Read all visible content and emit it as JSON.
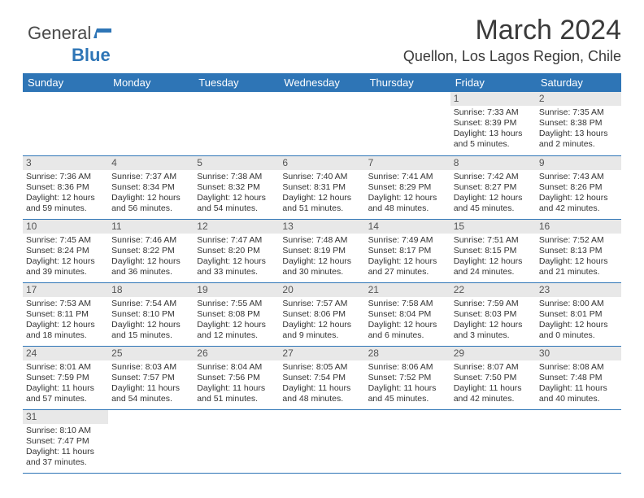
{
  "brand": {
    "part1": "General",
    "part2": "Blue"
  },
  "title": "March 2024",
  "subtitle": "Quellon, Los Lagos Region, Chile",
  "colors": {
    "header_bg": "#2e75b6",
    "header_text": "#ffffff",
    "daynum_bg": "#e8e8e8",
    "border": "#2e75b6",
    "text": "#333333",
    "title_color": "#3a3a3a"
  },
  "weekdays": [
    "Sunday",
    "Monday",
    "Tuesday",
    "Wednesday",
    "Thursday",
    "Friday",
    "Saturday"
  ],
  "weeks": [
    [
      null,
      null,
      null,
      null,
      null,
      {
        "n": "1",
        "sr": "7:33 AM",
        "ss": "8:39 PM",
        "dl": "13 hours and 5 minutes."
      },
      {
        "n": "2",
        "sr": "7:35 AM",
        "ss": "8:38 PM",
        "dl": "13 hours and 2 minutes."
      }
    ],
    [
      {
        "n": "3",
        "sr": "7:36 AM",
        "ss": "8:36 PM",
        "dl": "12 hours and 59 minutes."
      },
      {
        "n": "4",
        "sr": "7:37 AM",
        "ss": "8:34 PM",
        "dl": "12 hours and 56 minutes."
      },
      {
        "n": "5",
        "sr": "7:38 AM",
        "ss": "8:32 PM",
        "dl": "12 hours and 54 minutes."
      },
      {
        "n": "6",
        "sr": "7:40 AM",
        "ss": "8:31 PM",
        "dl": "12 hours and 51 minutes."
      },
      {
        "n": "7",
        "sr": "7:41 AM",
        "ss": "8:29 PM",
        "dl": "12 hours and 48 minutes."
      },
      {
        "n": "8",
        "sr": "7:42 AM",
        "ss": "8:27 PM",
        "dl": "12 hours and 45 minutes."
      },
      {
        "n": "9",
        "sr": "7:43 AM",
        "ss": "8:26 PM",
        "dl": "12 hours and 42 minutes."
      }
    ],
    [
      {
        "n": "10",
        "sr": "7:45 AM",
        "ss": "8:24 PM",
        "dl": "12 hours and 39 minutes."
      },
      {
        "n": "11",
        "sr": "7:46 AM",
        "ss": "8:22 PM",
        "dl": "12 hours and 36 minutes."
      },
      {
        "n": "12",
        "sr": "7:47 AM",
        "ss": "8:20 PM",
        "dl": "12 hours and 33 minutes."
      },
      {
        "n": "13",
        "sr": "7:48 AM",
        "ss": "8:19 PM",
        "dl": "12 hours and 30 minutes."
      },
      {
        "n": "14",
        "sr": "7:49 AM",
        "ss": "8:17 PM",
        "dl": "12 hours and 27 minutes."
      },
      {
        "n": "15",
        "sr": "7:51 AM",
        "ss": "8:15 PM",
        "dl": "12 hours and 24 minutes."
      },
      {
        "n": "16",
        "sr": "7:52 AM",
        "ss": "8:13 PM",
        "dl": "12 hours and 21 minutes."
      }
    ],
    [
      {
        "n": "17",
        "sr": "7:53 AM",
        "ss": "8:11 PM",
        "dl": "12 hours and 18 minutes."
      },
      {
        "n": "18",
        "sr": "7:54 AM",
        "ss": "8:10 PM",
        "dl": "12 hours and 15 minutes."
      },
      {
        "n": "19",
        "sr": "7:55 AM",
        "ss": "8:08 PM",
        "dl": "12 hours and 12 minutes."
      },
      {
        "n": "20",
        "sr": "7:57 AM",
        "ss": "8:06 PM",
        "dl": "12 hours and 9 minutes."
      },
      {
        "n": "21",
        "sr": "7:58 AM",
        "ss": "8:04 PM",
        "dl": "12 hours and 6 minutes."
      },
      {
        "n": "22",
        "sr": "7:59 AM",
        "ss": "8:03 PM",
        "dl": "12 hours and 3 minutes."
      },
      {
        "n": "23",
        "sr": "8:00 AM",
        "ss": "8:01 PM",
        "dl": "12 hours and 0 minutes."
      }
    ],
    [
      {
        "n": "24",
        "sr": "8:01 AM",
        "ss": "7:59 PM",
        "dl": "11 hours and 57 minutes."
      },
      {
        "n": "25",
        "sr": "8:03 AM",
        "ss": "7:57 PM",
        "dl": "11 hours and 54 minutes."
      },
      {
        "n": "26",
        "sr": "8:04 AM",
        "ss": "7:56 PM",
        "dl": "11 hours and 51 minutes."
      },
      {
        "n": "27",
        "sr": "8:05 AM",
        "ss": "7:54 PM",
        "dl": "11 hours and 48 minutes."
      },
      {
        "n": "28",
        "sr": "8:06 AM",
        "ss": "7:52 PM",
        "dl": "11 hours and 45 minutes."
      },
      {
        "n": "29",
        "sr": "8:07 AM",
        "ss": "7:50 PM",
        "dl": "11 hours and 42 minutes."
      },
      {
        "n": "30",
        "sr": "8:08 AM",
        "ss": "7:48 PM",
        "dl": "11 hours and 40 minutes."
      }
    ],
    [
      {
        "n": "31",
        "sr": "8:10 AM",
        "ss": "7:47 PM",
        "dl": "11 hours and 37 minutes."
      },
      null,
      null,
      null,
      null,
      null,
      null
    ]
  ],
  "labels": {
    "sunrise": "Sunrise:",
    "sunset": "Sunset:",
    "daylight": "Daylight:"
  }
}
